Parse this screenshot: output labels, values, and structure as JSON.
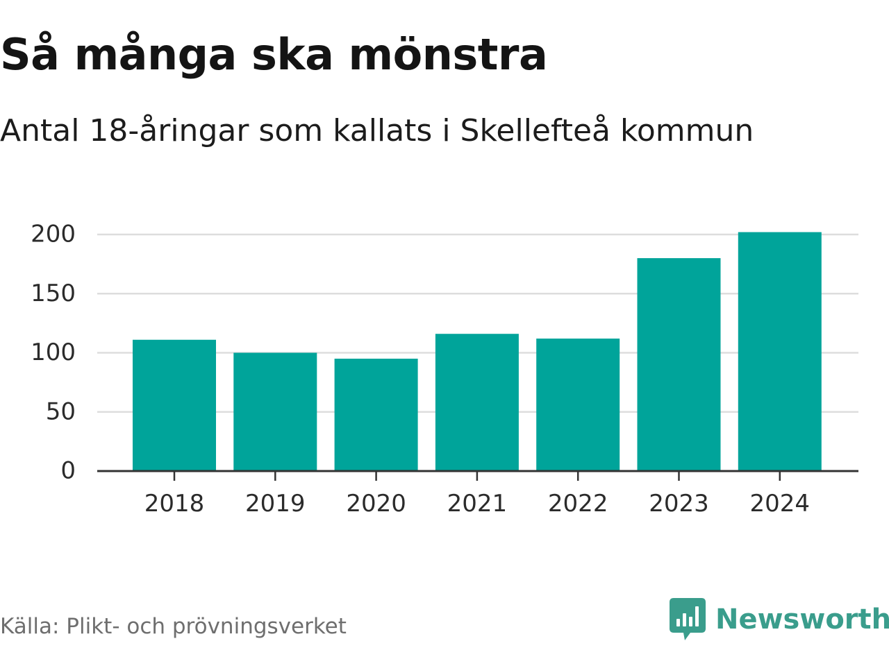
{
  "header": {
    "title": "Så många ska mönstra",
    "subtitle": "Antal 18-åringar som kallats i Skellefteå kommun"
  },
  "footer": {
    "source": "Källa: Plikt- och prövningsverket",
    "brand": "Newsworthy",
    "brand_icon": "newsworthy-logo-icon"
  },
  "colors": {
    "bar": "#00a49a",
    "grid": "#dddddd",
    "axis": "#333333",
    "tick_text": "#2b2b2b",
    "brand": "#3a9d8c"
  },
  "chart_data": {
    "type": "bar",
    "title": "Så många ska mönstra",
    "subtitle": "Antal 18-åringar som kallats i Skellefteå kommun",
    "xlabel": "",
    "ylabel": "",
    "categories": [
      "2018",
      "2019",
      "2020",
      "2021",
      "2022",
      "2023",
      "2024"
    ],
    "values": [
      111,
      100,
      95,
      116,
      112,
      180,
      202
    ],
    "ylim": [
      0,
      200
    ],
    "yticks": [
      0,
      50,
      100,
      150,
      200
    ],
    "grid": true,
    "legend": "none"
  }
}
